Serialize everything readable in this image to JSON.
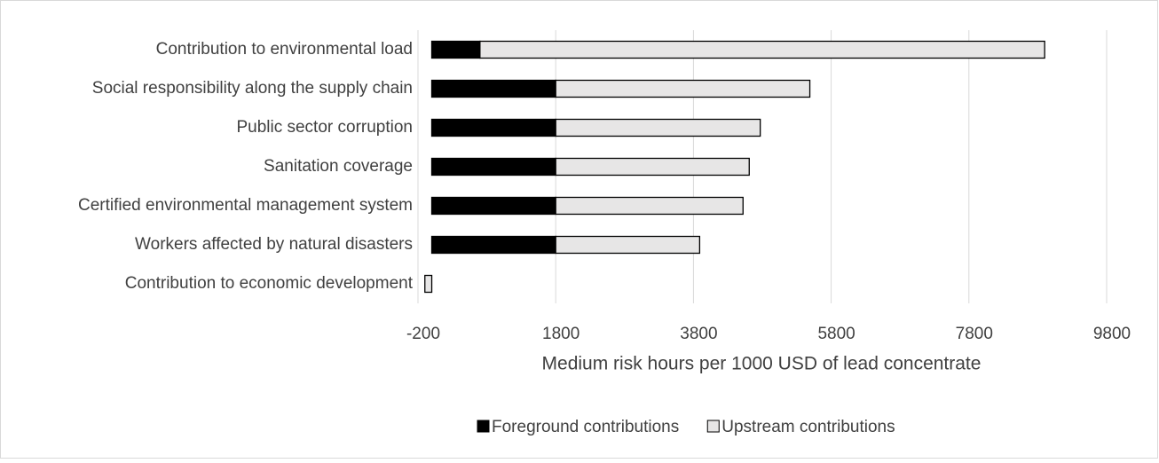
{
  "chart_data": {
    "type": "stacked_barh",
    "xlabel": "Medium risk hours per 1000 USD of lead concentrate",
    "categories": [
      "Contribution to environmental load",
      "Social responsibility along the supply chain",
      "Public sector corruption",
      "Sanitation coverage",
      "Certified environmental management system",
      "Workers affected by natural disasters",
      "Contribution to economic development"
    ],
    "series": [
      {
        "name": "Foreground contributions",
        "color": "#000000",
        "values": [
          700,
          1800,
          1800,
          1800,
          1800,
          1800,
          0
        ]
      },
      {
        "name": "Upstream contributions",
        "color": "#e7e6e6",
        "values": [
          8200,
          3690,
          2970,
          2810,
          2720,
          2090,
          -100
        ]
      }
    ],
    "xlim": [
      -200,
      9800
    ],
    "xticks": [
      -200,
      1800,
      3800,
      5800,
      7800,
      9800
    ],
    "grid": true,
    "legend": "bottom"
  }
}
